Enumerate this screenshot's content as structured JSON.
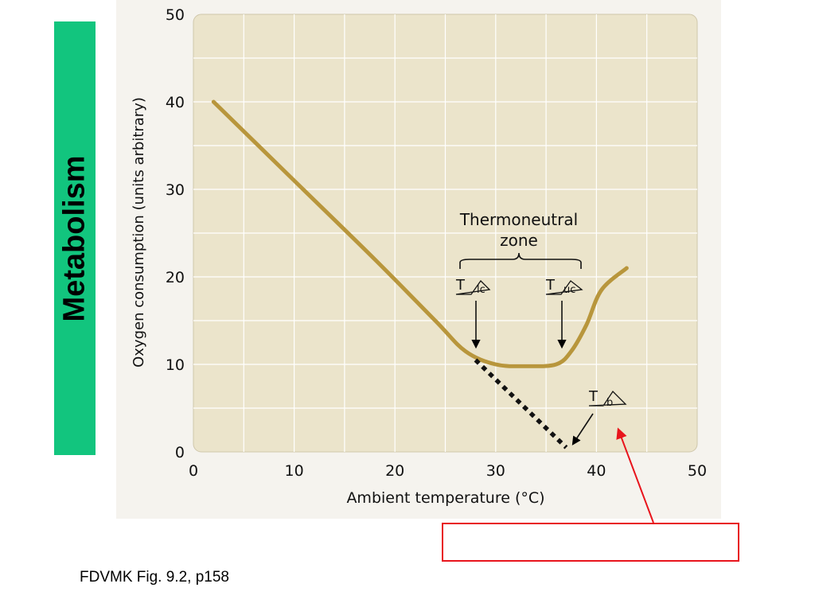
{
  "slide": {
    "side_title": "Metabolism",
    "caption": "FDVMK Fig. 9.2, p158",
    "answer_box_text": ""
  },
  "colors": {
    "side_tab": "#12c57e",
    "plot_bg": "#ebe4cb",
    "curve": "#b8963c",
    "extrapolation": "#111111",
    "red_box": "#e8141c",
    "grid": "#ffffff"
  },
  "chart_data": {
    "type": "line",
    "xlabel": "Ambient temperature (°C)",
    "ylabel": "Oxygen consumption (units arbitrary)",
    "xlim": [
      0,
      50
    ],
    "ylim": [
      0,
      50
    ],
    "x_ticks": [
      0,
      10,
      20,
      30,
      40,
      50
    ],
    "y_ticks": [
      0,
      10,
      20,
      30,
      40,
      50
    ],
    "grid": true,
    "series": [
      {
        "style": "solid",
        "points": [
          [
            2,
            40
          ],
          [
            10,
            31
          ],
          [
            18,
            22
          ],
          [
            24,
            15
          ],
          [
            27,
            11.5
          ],
          [
            30,
            10
          ],
          [
            33,
            9.8
          ],
          [
            36,
            10
          ],
          [
            37.5,
            11.5
          ],
          [
            39,
            14.5
          ],
          [
            40.5,
            18.5
          ],
          [
            43,
            21
          ]
        ]
      },
      {
        "style": "dotted",
        "points": [
          [
            28,
            10.5
          ],
          [
            37,
            0.5
          ]
        ]
      }
    ],
    "annotations": {
      "zone_label_line1": "Thermoneutral",
      "zone_label_line2": "zone",
      "t_lc_main": "T",
      "t_lc_sub": "lc",
      "t_uc_main": "T",
      "t_uc_sub": "uc",
      "t_b_main": "T",
      "t_b_sub": "b",
      "t_lc_x": 28,
      "t_uc_x": 36.5,
      "t_b_x": 37
    }
  }
}
